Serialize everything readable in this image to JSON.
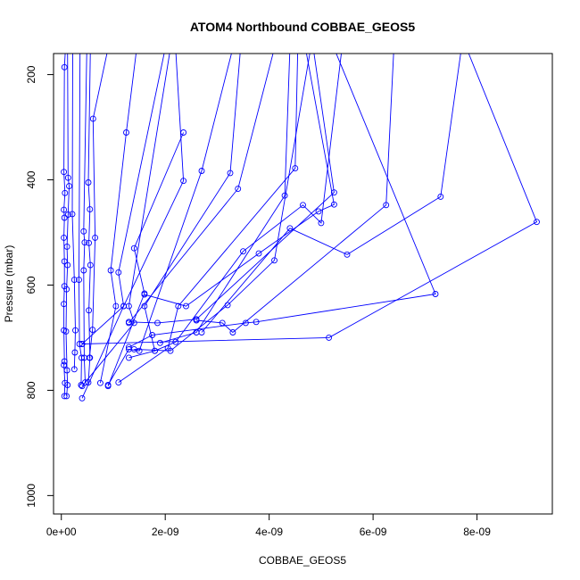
{
  "chart_data": {
    "type": "line",
    "title": "ATOM4 Northbound COBBAE_GEOS5",
    "xlabel": "COBBAE_GEOS5",
    "ylabel": "Pressure (mbar)",
    "xlim": [
      -1.5e-10,
      9.45e-09
    ],
    "ylim": [
      1035,
      160
    ],
    "y_reversed": true,
    "x_ticks": [
      {
        "value": 0,
        "label": "0e+00"
      },
      {
        "value": 2e-09,
        "label": "2e-09"
      },
      {
        "value": 4e-09,
        "label": "4e-09"
      },
      {
        "value": 6e-09,
        "label": "6e-09"
      },
      {
        "value": 8e-09,
        "label": "8e-09"
      }
    ],
    "y_ticks": [
      {
        "value": 200,
        "label": "200"
      },
      {
        "value": 400,
        "label": "400"
      },
      {
        "value": 600,
        "label": "600"
      },
      {
        "value": 800,
        "label": "800"
      },
      {
        "value": 1000,
        "label": "1000"
      }
    ],
    "grid": false,
    "legend": "none",
    "color": "#0000ff",
    "series": [
      {
        "values": [
          [
            8e-11,
            150
          ],
          [
            6e-11,
            186
          ],
          [
            5e-11,
            385
          ],
          [
            7e-11,
            425
          ],
          [
            5e-11,
            457
          ],
          [
            6e-11,
            472
          ],
          [
            5e-11,
            510
          ],
          [
            6e-11,
            555
          ],
          [
            6e-11,
            602
          ],
          [
            5e-11,
            636
          ],
          [
            5e-11,
            686
          ],
          [
            6e-11,
            745
          ],
          [
            5e-11,
            752
          ],
          [
            7e-11,
            786
          ],
          [
            6e-11,
            811
          ]
        ]
      },
      {
        "values": [
          [
            1.2e-10,
            150
          ],
          [
            1.3e-10,
            396
          ],
          [
            1.5e-10,
            412
          ],
          [
            1.3e-10,
            466
          ],
          [
            1.1e-10,
            527
          ],
          [
            1.2e-10,
            562
          ],
          [
            1e-10,
            608
          ],
          [
            9e-11,
            688
          ],
          [
            1.1e-10,
            762
          ],
          [
            1.2e-10,
            790
          ],
          [
            1e-10,
            811
          ]
        ]
      },
      {
        "values": [
          [
            2.2e-10,
            150
          ],
          [
            2.1e-10,
            465
          ],
          [
            2.5e-10,
            590
          ],
          [
            2.7e-10,
            686
          ],
          [
            2.6e-10,
            728
          ],
          [
            2.5e-10,
            760
          ]
        ]
      },
      {
        "values": [
          [
            3.6e-10,
            150
          ],
          [
            3.4e-10,
            590
          ],
          [
            3.5e-10,
            712
          ],
          [
            3.9e-10,
            738
          ],
          [
            3.8e-10,
            790
          ]
        ]
      },
      {
        "values": [
          [
            4.9e-10,
            150
          ],
          [
            4.3e-10,
            498
          ],
          [
            4.5e-10,
            519
          ],
          [
            4.3e-10,
            572
          ],
          [
            4.4e-10,
            738
          ],
          [
            4.6e-10,
            785
          ]
        ]
      },
      {
        "values": [
          [
            5.6e-10,
            150
          ],
          [
            5.2e-10,
            405
          ],
          [
            5.5e-10,
            456
          ],
          [
            5.3e-10,
            520
          ],
          [
            5.6e-10,
            562
          ],
          [
            5.3e-10,
            648
          ],
          [
            5.5e-10,
            738
          ],
          [
            5.2e-10,
            785
          ]
        ]
      },
      {
        "values": [
          [
            9e-10,
            150
          ],
          [
            6.1e-10,
            284
          ],
          [
            6.5e-10,
            510
          ],
          [
            6e-10,
            685
          ],
          [
            5.4e-10,
            738
          ]
        ]
      },
      {
        "values": [
          [
            1.45e-09,
            150
          ],
          [
            1.25e-09,
            310
          ],
          [
            9.5e-10,
            572
          ],
          [
            1.05e-09,
            640
          ],
          [
            7.5e-10,
            786
          ]
        ]
      },
      {
        "values": [
          [
            2e-09,
            150
          ],
          [
            1.1e-09,
            576
          ],
          [
            1.2e-09,
            640
          ],
          [
            4e-10,
            712
          ]
        ]
      },
      {
        "values": [
          [
            2.1e-09,
            150
          ],
          [
            1.3e-09,
            640
          ],
          [
            1.4e-09,
            672
          ],
          [
            4e-10,
            792
          ]
        ]
      },
      {
        "values": [
          [
            2.35e-09,
            310
          ],
          [
            1.4e-09,
            530
          ],
          [
            1.6e-09,
            616
          ],
          [
            9e-10,
            792
          ]
        ]
      },
      {
        "values": [
          [
            2.2e-09,
            150
          ],
          [
            2.35e-09,
            402
          ],
          [
            1.2e-09,
            640
          ],
          [
            4e-10,
            815
          ]
        ]
      },
      {
        "values": [
          [
            3.3e-09,
            150
          ],
          [
            2.7e-09,
            383
          ],
          [
            1.5e-09,
            725
          ],
          [
            1.3e-09,
            722
          ],
          [
            9e-10,
            790
          ]
        ]
      },
      {
        "values": [
          [
            3.45e-09,
            150
          ],
          [
            3.25e-09,
            387
          ],
          [
            1.6e-09,
            640
          ],
          [
            1.8e-09,
            725
          ],
          [
            1.3e-09,
            738
          ]
        ]
      },
      {
        "values": [
          [
            4.1e-09,
            150
          ],
          [
            3.4e-09,
            417
          ],
          [
            1.3e-09,
            672
          ]
        ]
      },
      {
        "values": [
          [
            4.55e-09,
            150
          ],
          [
            4.5e-09,
            378
          ],
          [
            2.25e-09,
            640
          ],
          [
            2.05e-09,
            720
          ],
          [
            1.1e-09,
            785
          ]
        ]
      },
      {
        "values": [
          [
            4.85e-09,
            150
          ],
          [
            5.25e-09,
            424
          ],
          [
            2.6e-09,
            665
          ],
          [
            1.85e-09,
            672
          ],
          [
            1.3e-09,
            670
          ]
        ]
      },
      {
        "values": [
          [
            4.4e-09,
            150
          ],
          [
            4.3e-09,
            430
          ],
          [
            2.6e-09,
            690
          ],
          [
            1.9e-09,
            710
          ]
        ]
      },
      {
        "values": [
          [
            6.4e-09,
            150
          ],
          [
            6.25e-09,
            448
          ],
          [
            3.3e-09,
            690
          ],
          [
            3.1e-09,
            672
          ],
          [
            2.6e-09,
            667
          ]
        ]
      },
      {
        "values": [
          [
            5.4e-09,
            150
          ],
          [
            5e-09,
            482
          ],
          [
            4.65e-09,
            448
          ],
          [
            3.5e-09,
            536
          ],
          [
            2.2e-09,
            708
          ],
          [
            1.8e-09,
            725
          ]
        ]
      },
      {
        "values": [
          [
            4.7e-09,
            150
          ],
          [
            5.25e-09,
            447
          ],
          [
            4.95e-09,
            460
          ],
          [
            3.8e-09,
            540
          ],
          [
            2.4e-09,
            640
          ],
          [
            1.6e-09,
            618
          ]
        ]
      },
      {
        "values": [
          [
            7.7e-09,
            150
          ],
          [
            7.3e-09,
            432
          ],
          [
            5.5e-09,
            542
          ],
          [
            4.4e-09,
            492
          ],
          [
            2.7e-09,
            690
          ]
        ]
      },
      {
        "values": [
          [
            7.8e-09,
            150
          ],
          [
            9.15e-09,
            480
          ],
          [
            5.15e-09,
            700
          ],
          [
            4e-10,
            712
          ]
        ]
      },
      {
        "values": [
          [
            5.25e-09,
            150
          ],
          [
            7.2e-09,
            617
          ],
          [
            3.75e-09,
            670
          ],
          [
            3.55e-09,
            672
          ],
          [
            1.75e-09,
            695
          ],
          [
            1.3e-09,
            718
          ]
        ]
      },
      {
        "values": [
          [
            4.8e-09,
            150
          ],
          [
            4.1e-09,
            553
          ],
          [
            3.2e-09,
            638
          ],
          [
            2.1e-09,
            725
          ],
          [
            1.4e-09,
            722
          ]
        ]
      }
    ]
  }
}
